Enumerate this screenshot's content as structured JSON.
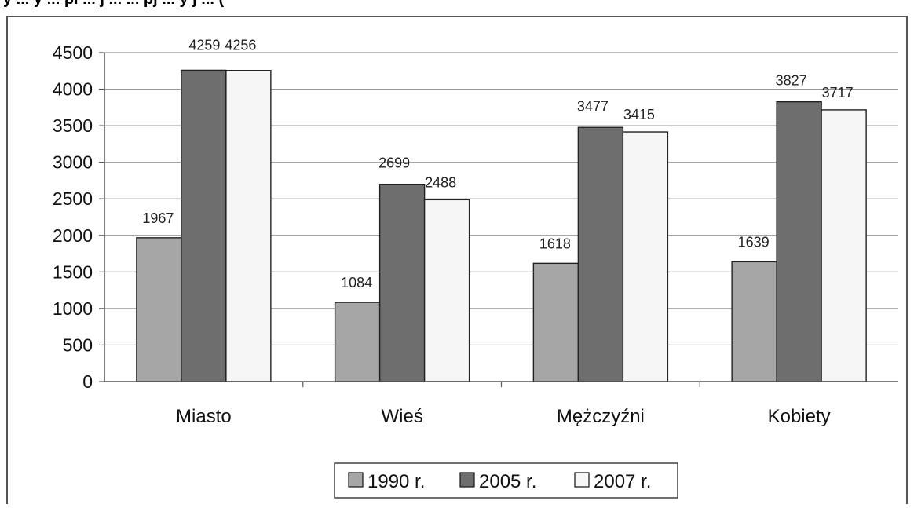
{
  "header_fragment": "y ... y ... pi ... j ... ... pj ... y j ... (",
  "chart_data": {
    "type": "bar",
    "title": "",
    "xlabel": "",
    "ylabel": "",
    "categories": [
      "Miasto",
      "Wieś",
      "Mężczyźni",
      "Kobiety"
    ],
    "ylim": [
      0,
      4500
    ],
    "yticks": [
      0,
      500,
      1000,
      1500,
      2000,
      2500,
      3000,
      3500,
      4000,
      4500
    ],
    "grid": true,
    "legend_position": "bottom",
    "series": [
      {
        "name": "1990 r.",
        "values": [
          1967,
          1084,
          1618,
          1639
        ],
        "color": "#a6a6a6"
      },
      {
        "name": "2005 r.",
        "values": [
          4259,
          2699,
          3477,
          3827
        ],
        "color": "#6e6e6e"
      },
      {
        "name": "2007 r.",
        "values": [
          4256,
          2488,
          3415,
          3717
        ],
        "color": "#f6f6f6"
      }
    ],
    "data_labels": [
      [
        "1967",
        "1084",
        "1618",
        "1639"
      ],
      [
        "4259",
        "2699",
        "3477",
        "3827"
      ],
      [
        "4256",
        "2488",
        "3415",
        "3717"
      ]
    ]
  }
}
